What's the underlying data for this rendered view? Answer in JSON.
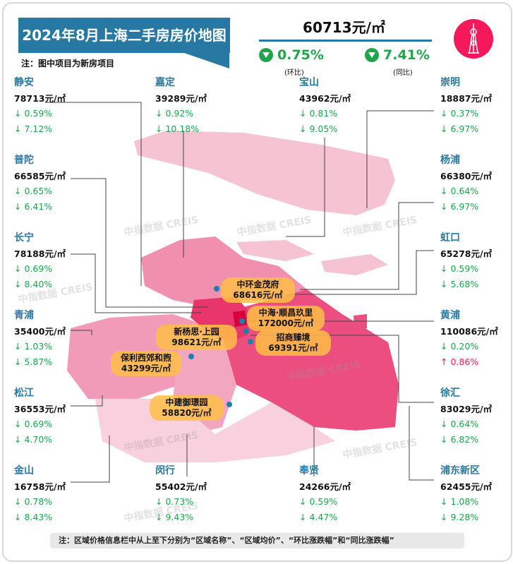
{
  "header": {
    "title": "2024年8月上海二手房房价地图",
    "note": "注：图中项目为新房项目",
    "avg_price": "60713元/㎡",
    "mom": {
      "value": "0.75%",
      "label": "(环比)",
      "direction": "down"
    },
    "yoy": {
      "value": "7.41%",
      "label": "(同比)",
      "direction": "down"
    }
  },
  "colors": {
    "title_bg": "#2779a3",
    "down": "#1fa64a",
    "up": "#e8234a",
    "logo": "#f5185a",
    "project_label": "#ffbe46"
  },
  "districts": [
    {
      "name": "静安",
      "price": "78713元/㎡",
      "mom": "↓ 0.59%",
      "yoy": "↓ 7.12%",
      "mom_dir": "down",
      "yoy_dir": "down"
    },
    {
      "name": "嘉定",
      "price": "39289元/㎡",
      "mom": "↓ 0.92%",
      "yoy": "↓ 10.18%",
      "mom_dir": "down",
      "yoy_dir": "down"
    },
    {
      "name": "宝山",
      "price": "43962元/㎡",
      "mom": "↓ 0.81%",
      "yoy": "↓ 9.05%",
      "mom_dir": "down",
      "yoy_dir": "down"
    },
    {
      "name": "崇明",
      "price": "18887元/㎡",
      "mom": "↓ 0.37%",
      "yoy": "↓ 6.97%",
      "mom_dir": "down",
      "yoy_dir": "down"
    },
    {
      "name": "普陀",
      "price": "66585元/㎡",
      "mom": "↓ 0.65%",
      "yoy": "↓ 6.41%",
      "mom_dir": "down",
      "yoy_dir": "down"
    },
    {
      "name": "杨浦",
      "price": "66380元/㎡",
      "mom": "↓ 0.64%",
      "yoy": "↓ 6.97%",
      "mom_dir": "down",
      "yoy_dir": "down"
    },
    {
      "name": "长宁",
      "price": "78188元/㎡",
      "mom": "↓ 0.69%",
      "yoy": "↓ 8.40%",
      "mom_dir": "down",
      "yoy_dir": "down"
    },
    {
      "name": "虹口",
      "price": "65278元/㎡",
      "mom": "↓ 0.59%",
      "yoy": "↓ 5.68%",
      "mom_dir": "down",
      "yoy_dir": "down"
    },
    {
      "name": "青浦",
      "price": "35400元/㎡",
      "mom": "↓ 1.03%",
      "yoy": "↓ 5.87%",
      "mom_dir": "down",
      "yoy_dir": "down"
    },
    {
      "name": "黄浦",
      "price": "110086元/㎡",
      "mom": "↓ 0.20%",
      "yoy": "↑ 0.86%",
      "mom_dir": "down",
      "yoy_dir": "up"
    },
    {
      "name": "松江",
      "price": "36553元/㎡",
      "mom": "↓ 0.69%",
      "yoy": "↓ 4.70%",
      "mom_dir": "down",
      "yoy_dir": "down"
    },
    {
      "name": "徐汇",
      "price": "83029元/㎡",
      "mom": "↓ 0.64%",
      "yoy": "↓ 6.82%",
      "mom_dir": "down",
      "yoy_dir": "down"
    },
    {
      "name": "金山",
      "price": "16758元/㎡",
      "mom": "↓ 0.78%",
      "yoy": "↓ 8.43%",
      "mom_dir": "down",
      "yoy_dir": "down"
    },
    {
      "name": "闵行",
      "price": "55402元/㎡",
      "mom": "↓ 0.73%",
      "yoy": "↓ 9.43%",
      "mom_dir": "down",
      "yoy_dir": "down"
    },
    {
      "name": "奉贤",
      "price": "24266元/㎡",
      "mom": "↓ 0.59%",
      "yoy": "↓ 4.47%",
      "mom_dir": "down",
      "yoy_dir": "down"
    },
    {
      "name": "浦东新区",
      "price": "62455元/㎡",
      "mom": "↓ 1.08%",
      "yoy": "↓ 9.28%",
      "mom_dir": "down",
      "yoy_dir": "down"
    }
  ],
  "projects": [
    {
      "name": "中环金茂府",
      "price": "68616元/㎡"
    },
    {
      "name": "中海·顺昌玖里",
      "price": "172000元/㎡"
    },
    {
      "name": "新杨思·上园",
      "price": "98621元/㎡"
    },
    {
      "name": "招商臻境",
      "price": "69391元/㎡"
    },
    {
      "name": "保利西郊和煦",
      "price": "43299元/㎡"
    },
    {
      "name": "中建御璟园",
      "price": "58820元/㎡"
    }
  ],
  "watermark": "中指数据 CREIS",
  "footer": "注：区域价格信息栏中从上至下分别为“区域名称”、“区域均价”、“环比涨跌幅”和“同比涨跌幅”"
}
